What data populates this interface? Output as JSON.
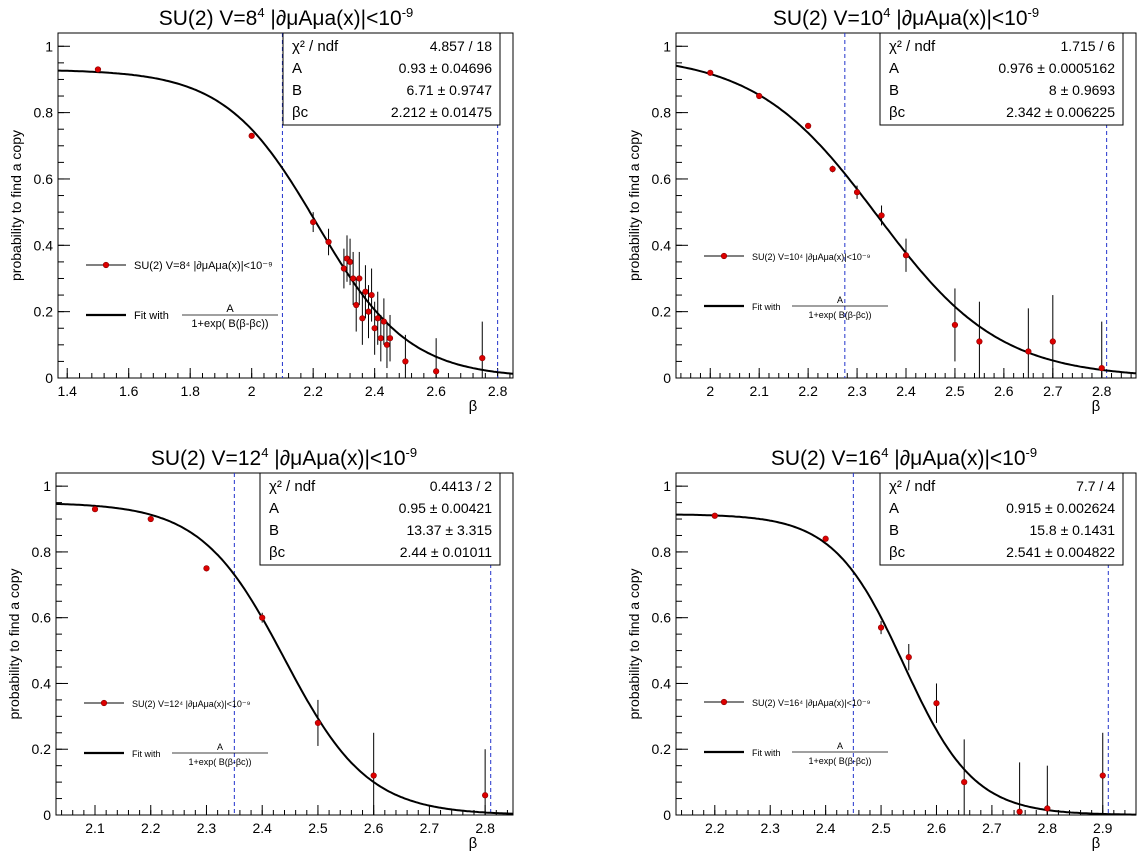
{
  "chart_data": [
    {
      "type": "scatter",
      "title_prefix": "SU(2) V=8",
      "title_exp": "4",
      "title_suffix": " |∂μAμa(x)|<10",
      "title_neg": "-9",
      "xlabel": "β",
      "ylabel": "probability to find a copy",
      "xlim": [
        1.37,
        2.85
      ],
      "ylim": [
        0,
        1.04
      ],
      "xticks": [
        "1.4",
        "1.6",
        "1.8",
        "2",
        "2.2",
        "2.4",
        "2.6",
        "2.8"
      ],
      "yticks": [
        "0",
        "0.2",
        "0.4",
        "0.6",
        "0.8",
        "1"
      ],
      "vlines": [
        2.1,
        2.8
      ],
      "legend": {
        "data_label": "SU(2) V=8⁴ |∂μAμa(x)|<10⁻⁹",
        "fit_label": "Fit with",
        "fit_num": "A",
        "fit_den": "1+exp( B(β-βc))",
        "placement": "middle-left"
      },
      "stats": [
        {
          "label": "χ² / ndf",
          "value": "4.857 / 18"
        },
        {
          "label": "A",
          "value": "0.93 ± 0.04696"
        },
        {
          "label": "B",
          "value": "6.71 ± 0.9747"
        },
        {
          "label": "βc",
          "value": "2.212 ± 0.01475"
        }
      ],
      "fit": {
        "A": 0.93,
        "B": 6.71,
        "bc": 2.212
      },
      "points": [
        {
          "x": 1.5,
          "y": 0.93,
          "err": 0
        },
        {
          "x": 2.0,
          "y": 0.73,
          "err": 0
        },
        {
          "x": 2.2,
          "y": 0.47,
          "err": 0.03
        },
        {
          "x": 2.25,
          "y": 0.41,
          "err": 0.04
        },
        {
          "x": 2.3,
          "y": 0.33,
          "err": 0.06
        },
        {
          "x": 2.31,
          "y": 0.36,
          "err": 0.07
        },
        {
          "x": 2.32,
          "y": 0.35,
          "err": 0.07
        },
        {
          "x": 2.33,
          "y": 0.3,
          "err": 0.08
        },
        {
          "x": 2.34,
          "y": 0.22,
          "err": 0.08
        },
        {
          "x": 2.35,
          "y": 0.3,
          "err": 0.08
        },
        {
          "x": 2.36,
          "y": 0.18,
          "err": 0.08
        },
        {
          "x": 2.37,
          "y": 0.26,
          "err": 0.08
        },
        {
          "x": 2.38,
          "y": 0.2,
          "err": 0.08
        },
        {
          "x": 2.39,
          "y": 0.25,
          "err": 0.08
        },
        {
          "x": 2.4,
          "y": 0.15,
          "err": 0.08
        },
        {
          "x": 2.41,
          "y": 0.18,
          "err": 0.08
        },
        {
          "x": 2.42,
          "y": 0.12,
          "err": 0.07
        },
        {
          "x": 2.43,
          "y": 0.17,
          "err": 0.07
        },
        {
          "x": 2.44,
          "y": 0.1,
          "err": 0.07
        },
        {
          "x": 2.45,
          "y": 0.12,
          "err": 0.07
        },
        {
          "x": 2.5,
          "y": 0.05,
          "err": 0.08
        },
        {
          "x": 2.6,
          "y": 0.02,
          "err": 0.1
        },
        {
          "x": 2.75,
          "y": 0.06,
          "err": 0.11
        }
      ]
    },
    {
      "type": "scatter",
      "title_prefix": "SU(2) V=10",
      "title_exp": "4",
      "title_suffix": " |∂μAμa(x)|<10",
      "title_neg": "-9",
      "xlabel": "β",
      "ylabel": "probability to find a copy",
      "xlim": [
        1.93,
        2.87
      ],
      "ylim": [
        0,
        1.04
      ],
      "xticks": [
        "2",
        "2.1",
        "2.2",
        "2.3",
        "2.4",
        "2.5",
        "2.6",
        "2.7",
        "2.8"
      ],
      "yticks": [
        "0",
        "0.2",
        "0.4",
        "0.6",
        "0.8",
        "1"
      ],
      "vlines": [
        2.275,
        2.81
      ],
      "legend": {
        "data_label": "SU(2) V=10⁴ |∂μAμa(x)|<10⁻⁹",
        "fit_label": "Fit with",
        "fit_num": "A",
        "fit_den": "1+exp( B(β-βc))",
        "placement": "middle-left"
      },
      "stats": [
        {
          "label": "χ² / ndf",
          "value": "1.715 / 6"
        },
        {
          "label": "A",
          "value": "0.976 ± 0.0005162"
        },
        {
          "label": "B",
          "value": "8 ± 0.9693"
        },
        {
          "label": "βc",
          "value": "2.342 ± 0.006225"
        }
      ],
      "fit": {
        "A": 0.976,
        "B": 8,
        "bc": 2.342
      },
      "points": [
        {
          "x": 2.0,
          "y": 0.92,
          "err": 0
        },
        {
          "x": 2.1,
          "y": 0.85,
          "err": 0
        },
        {
          "x": 2.2,
          "y": 0.76,
          "err": 0
        },
        {
          "x": 2.25,
          "y": 0.63,
          "err": 0.01
        },
        {
          "x": 2.3,
          "y": 0.56,
          "err": 0.02
        },
        {
          "x": 2.35,
          "y": 0.49,
          "err": 0.03
        },
        {
          "x": 2.4,
          "y": 0.37,
          "err": 0.05
        },
        {
          "x": 2.5,
          "y": 0.16,
          "err": 0.11
        },
        {
          "x": 2.55,
          "y": 0.11,
          "err": 0.12
        },
        {
          "x": 2.65,
          "y": 0.08,
          "err": 0.13
        },
        {
          "x": 2.7,
          "y": 0.11,
          "err": 0.14
        },
        {
          "x": 2.8,
          "y": 0.03,
          "err": 0.14
        }
      ]
    },
    {
      "type": "scatter",
      "title_prefix": "SU(2) V=12",
      "title_exp": "4",
      "title_suffix": " |∂μAμa(x)|<10",
      "title_neg": "-9",
      "xlabel": "β",
      "ylabel": "probability to find a copy",
      "xlim": [
        2.03,
        2.85
      ],
      "ylim": [
        0,
        1.04
      ],
      "xticks": [
        "2.1",
        "2.2",
        "2.3",
        "2.4",
        "2.5",
        "2.6",
        "2.7",
        "2.8"
      ],
      "yticks": [
        "0",
        "0.2",
        "0.4",
        "0.6",
        "0.8",
        "1"
      ],
      "vlines": [
        2.35,
        2.81
      ],
      "legend": {
        "data_label": "SU(2) V=12⁴ |∂μAμa(x)|<10⁻⁹",
        "fit_label": "Fit with",
        "fit_num": "A",
        "fit_den": "1+exp( B(β-βc))",
        "placement": "bottom-left"
      },
      "stats": [
        {
          "label": "χ² / ndf",
          "value": "0.4413 / 2"
        },
        {
          "label": "A",
          "value": "0.95 ± 0.00421"
        },
        {
          "label": "B",
          "value": "13.37 ± 3.315"
        },
        {
          "label": "βc",
          "value": "2.44 ± 0.01011"
        }
      ],
      "fit": {
        "A": 0.95,
        "B": 13.37,
        "bc": 2.44
      },
      "points": [
        {
          "x": 2.1,
          "y": 0.93,
          "err": 0
        },
        {
          "x": 2.2,
          "y": 0.9,
          "err": 0
        },
        {
          "x": 2.3,
          "y": 0.75,
          "err": 0
        },
        {
          "x": 2.4,
          "y": 0.6,
          "err": 0.015
        },
        {
          "x": 2.5,
          "y": 0.28,
          "err": 0.07
        },
        {
          "x": 2.6,
          "y": 0.12,
          "err": 0.13
        },
        {
          "x": 2.8,
          "y": 0.06,
          "err": 0.14
        }
      ]
    },
    {
      "type": "scatter",
      "title_prefix": "SU(2) V=16",
      "title_exp": "4",
      "title_suffix": " |∂μAμa(x)|<10",
      "title_neg": "-9",
      "xlabel": "β",
      "ylabel": "probability to find a copy",
      "xlim": [
        2.13,
        2.96
      ],
      "ylim": [
        0,
        1.04
      ],
      "xticks": [
        "2.2",
        "2.3",
        "2.4",
        "2.5",
        "2.6",
        "2.7",
        "2.8",
        "2.9"
      ],
      "yticks": [
        "0",
        "0.2",
        "0.4",
        "0.6",
        "0.8",
        "1"
      ],
      "vlines": [
        2.45,
        2.91
      ],
      "legend": {
        "data_label": "SU(2) V=16⁴ |∂μAμa(x)|<10⁻⁹",
        "fit_label": "Fit with",
        "fit_num": "A",
        "fit_den": "1+exp( B(β-βc))",
        "placement": "middle-left"
      },
      "stats": [
        {
          "label": "χ² / ndf",
          "value": "7.7 / 4"
        },
        {
          "label": "A",
          "value": "0.915 ± 0.002624"
        },
        {
          "label": "B",
          "value": "15.8 ± 0.1431"
        },
        {
          "label": "βc",
          "value": "2.541 ± 0.004822"
        }
      ],
      "fit": {
        "A": 0.915,
        "B": 15.8,
        "bc": 2.541
      },
      "points": [
        {
          "x": 2.2,
          "y": 0.91,
          "err": 0
        },
        {
          "x": 2.4,
          "y": 0.84,
          "err": 0
        },
        {
          "x": 2.5,
          "y": 0.57,
          "err": 0.02
        },
        {
          "x": 2.55,
          "y": 0.48,
          "err": 0.04
        },
        {
          "x": 2.6,
          "y": 0.34,
          "err": 0.06
        },
        {
          "x": 2.65,
          "y": 0.1,
          "err": 0.13
        },
        {
          "x": 2.75,
          "y": 0.01,
          "err": 0.15
        },
        {
          "x": 2.8,
          "y": 0.02,
          "err": 0.13
        },
        {
          "x": 2.9,
          "y": 0.12,
          "err": 0.13
        }
      ]
    }
  ]
}
